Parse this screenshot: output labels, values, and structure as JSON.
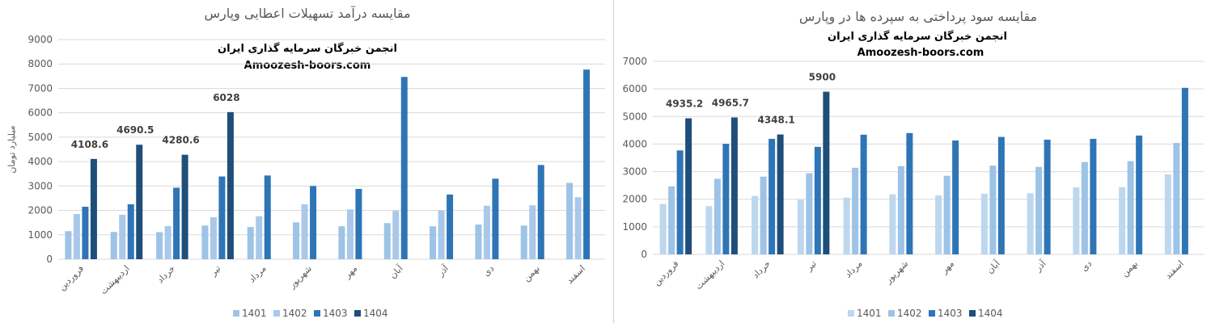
{
  "charts": [
    {
      "id": "left",
      "title": "مقایسه درآمد تسهیلات اعطایی وپارس",
      "overlay_line1": "انجمن خبرگان سرمایه گذاری ایران",
      "overlay_line2": "Amoozesh-boors.com",
      "chart_data": {
        "type": "bar",
        "title": "مقایسه درآمد تسهیلات اعطایی وپارس",
        "ylabel": "میلیارد تومان",
        "xlabel": "",
        "ylim": [
          0,
          9000
        ],
        "ytick_step": 1000,
        "grid": true,
        "legend_position": "bottom",
        "categories": [
          "فروردین",
          "اردیبهشت",
          "خرداد",
          "تیر",
          "مرداد",
          "شهریور",
          "مهر",
          "آبان",
          "آذر",
          "دی",
          "بهمن",
          "اسفند"
        ],
        "series": [
          {
            "name": "1401",
            "color": "#9DC3E6",
            "values": [
              1150,
              1120,
              1110,
              1380,
              1320,
              1510,
              1350,
              1480,
              1350,
              1420,
              1380,
              3130
            ]
          },
          {
            "name": "1402",
            "color": "#A9C8EA",
            "values": [
              1850,
              1820,
              1360,
              1720,
              1760,
              2250,
              2040,
              1980,
              2000,
              2190,
              2210,
              2540
            ]
          },
          {
            "name": "1403",
            "color": "#2E75B6",
            "values": [
              2150,
              2250,
              2930,
              3390,
              3430,
              3000,
              2880,
              7470,
              2650,
              3300,
              3860,
              7770
            ]
          },
          {
            "name": "1404",
            "color": "#1F4E79",
            "values": [
              4108.6,
              4690.5,
              4280.6,
              6028,
              null,
              null,
              null,
              null,
              null,
              null,
              null,
              null
            ]
          }
        ],
        "data_labels": [
          "4108.6",
          "4690.5",
          "4280.6",
          "6028"
        ]
      }
    },
    {
      "id": "right",
      "title": "مقایسه سود پرداختی به سپرده ها در وپارس",
      "overlay_line1": "انجمن خبرگان سرمایه گذاری ایران",
      "overlay_line2": "Amoozesh-boors.com",
      "chart_data": {
        "type": "bar",
        "title": "مقایسه سود پرداختی به سپرده ها در وپارس",
        "ylabel": "",
        "xlabel": "",
        "ylim": [
          0,
          7000
        ],
        "ytick_step": 1000,
        "grid": true,
        "legend_position": "bottom",
        "categories": [
          "فروردین",
          "اردیبهشت",
          "خرداد",
          "تیر",
          "مرداد",
          "شهریور",
          "مهر",
          "آبان",
          "آذر",
          "دی",
          "بهمن",
          "اسفند"
        ],
        "series": [
          {
            "name": "1401",
            "color": "#BDD7EE",
            "values": [
              1830,
              1750,
              2120,
              1980,
              2060,
              2180,
              2140,
              2200,
              2220,
              2430,
              2440,
              2900
            ]
          },
          {
            "name": "1402",
            "color": "#9DC3E6",
            "values": [
              2470,
              2740,
              2820,
              2940,
              3140,
              3200,
              2850,
              3220,
              3170,
              3350,
              3380,
              4040
            ]
          },
          {
            "name": "1403",
            "color": "#2E75B6",
            "values": [
              3770,
              4010,
              4190,
              3900,
              4340,
              4400,
              4130,
              4260,
              4160,
              4190,
              4310,
              6040
            ]
          },
          {
            "name": "1404",
            "color": "#1F4E79",
            "values": [
              4935.2,
              4965.7,
              4348.1,
              5900,
              null,
              null,
              null,
              null,
              null,
              null,
              null,
              null
            ]
          }
        ],
        "data_labels": [
          "4935.2",
          "4965.7",
          "4348.1",
          "5900"
        ]
      }
    }
  ]
}
